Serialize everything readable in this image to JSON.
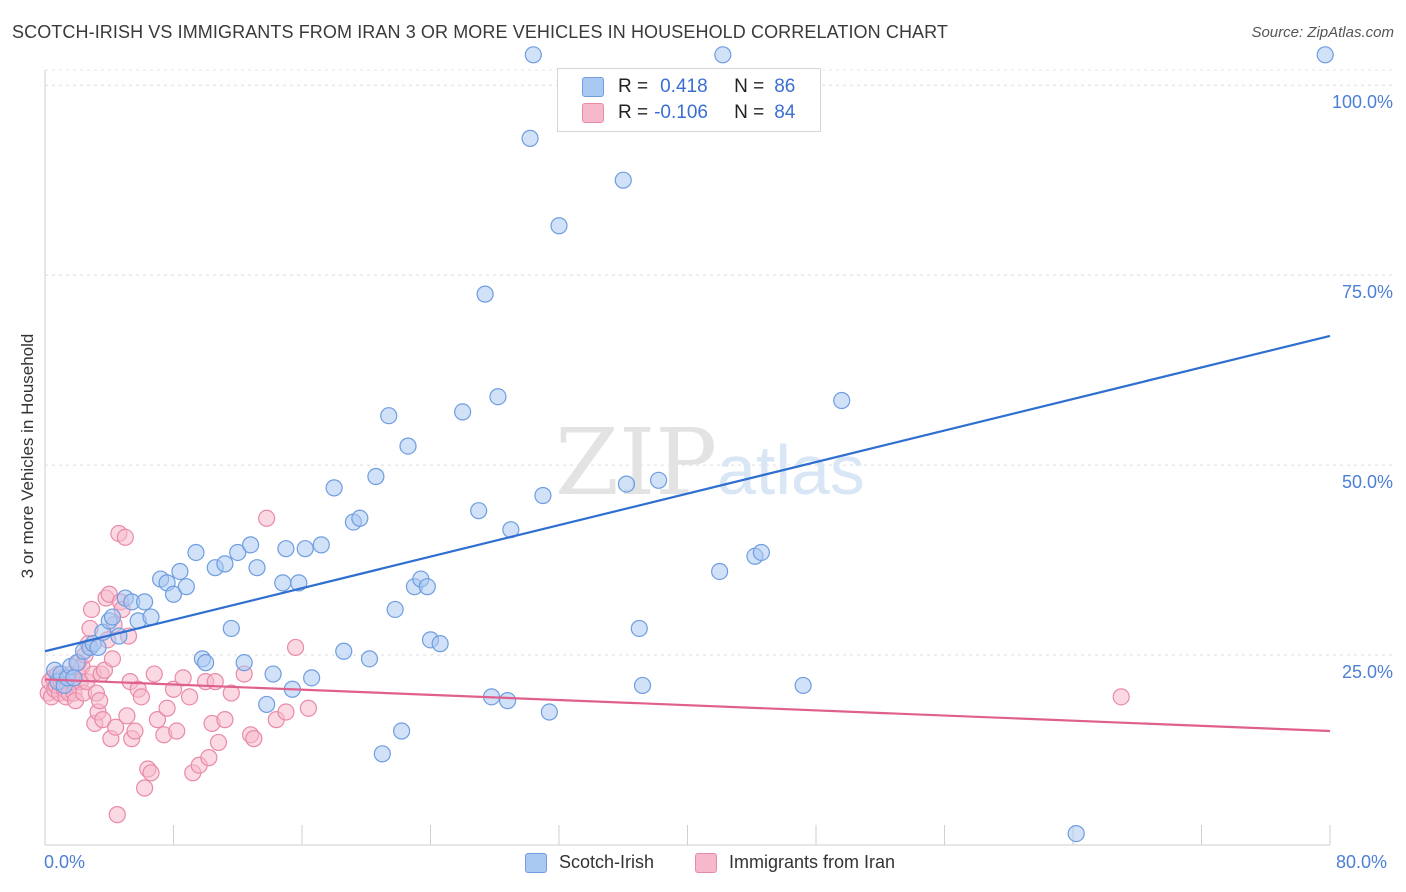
{
  "title": "SCOTCH-IRISH VS IMMIGRANTS FROM IRAN 3 OR MORE VEHICLES IN HOUSEHOLD CORRELATION CHART",
  "source": "Source: ZipAtlas.com",
  "watermark": {
    "zip": "ZIP",
    "atlas": "atlas"
  },
  "legend": {
    "rows": [
      {
        "r_label": "R =",
        "r_value": "0.418",
        "n_label": "N =",
        "n_value": "86"
      },
      {
        "r_label": "R =",
        "r_value": "-0.106",
        "n_label": "N =",
        "n_value": "84"
      }
    ]
  },
  "colors": {
    "series1_fill": "#a9c8f2",
    "series1_stroke": "#6f9de0",
    "series1_line": "#2f6fd0",
    "series2_fill": "#f6b9cc",
    "series2_stroke": "#e98aa8",
    "series2_line": "#e0608d",
    "axis_text": "#4c7fd6"
  },
  "chart_data": {
    "type": "scatter",
    "title": "SCOTCH-IRISH VS IMMIGRANTS FROM IRAN 3 OR MORE VEHICLES IN HOUSEHOLD CORRELATION CHART",
    "xlabel": "",
    "ylabel": "3 or more Vehicles in Household",
    "xlim": [
      0,
      80
    ],
    "ylim": [
      0,
      102
    ],
    "x_tick_labels": [
      "0.0%",
      "80.0%"
    ],
    "y_ticks": [
      25,
      50,
      75,
      100
    ],
    "y_tick_labels": [
      "25.0%",
      "50.0%",
      "75.0%",
      "100.0%"
    ],
    "grid": "horizontal dashed",
    "legend_position": "bottom",
    "series": [
      {
        "name": "Scotch-Irish",
        "R": 0.418,
        "N": 86,
        "trend": {
          "x0": 0,
          "y0": 25.5,
          "x1": 80,
          "y1": 67.0
        },
        "points": [
          [
            0.6,
            23.0
          ],
          [
            0.8,
            21.5
          ],
          [
            1.0,
            22.5
          ],
          [
            1.2,
            21.0
          ],
          [
            1.4,
            22.0
          ],
          [
            1.6,
            23.5
          ],
          [
            1.8,
            22.0
          ],
          [
            2.0,
            24.0
          ],
          [
            2.4,
            25.5
          ],
          [
            2.8,
            26.0
          ],
          [
            3.0,
            26.5
          ],
          [
            3.3,
            26.0
          ],
          [
            3.6,
            28.0
          ],
          [
            4.0,
            29.5
          ],
          [
            4.2,
            30.0
          ],
          [
            4.6,
            27.5
          ],
          [
            5.0,
            32.5
          ],
          [
            5.4,
            32.0
          ],
          [
            5.8,
            29.5
          ],
          [
            6.2,
            32.0
          ],
          [
            6.6,
            30.0
          ],
          [
            7.2,
            35.0
          ],
          [
            7.6,
            34.5
          ],
          [
            8.0,
            33.0
          ],
          [
            8.4,
            36.0
          ],
          [
            8.8,
            34.0
          ],
          [
            9.4,
            38.5
          ],
          [
            9.8,
            24.5
          ],
          [
            10.0,
            24.0
          ],
          [
            10.6,
            36.5
          ],
          [
            11.2,
            37.0
          ],
          [
            11.6,
            28.5
          ],
          [
            12.0,
            38.5
          ],
          [
            12.4,
            24.0
          ],
          [
            12.8,
            39.5
          ],
          [
            13.2,
            36.5
          ],
          [
            13.8,
            18.5
          ],
          [
            14.2,
            22.5
          ],
          [
            14.8,
            34.5
          ],
          [
            15.0,
            39.0
          ],
          [
            15.4,
            20.5
          ],
          [
            15.8,
            34.5
          ],
          [
            16.2,
            39.0
          ],
          [
            16.6,
            22.0
          ],
          [
            17.2,
            39.5
          ],
          [
            18.0,
            47.0
          ],
          [
            18.6,
            25.5
          ],
          [
            19.2,
            42.5
          ],
          [
            19.6,
            43.0
          ],
          [
            20.2,
            24.5
          ],
          [
            20.6,
            48.5
          ],
          [
            21.0,
            12.0
          ],
          [
            21.4,
            56.5
          ],
          [
            21.8,
            31.0
          ],
          [
            22.2,
            15.0
          ],
          [
            22.6,
            52.5
          ],
          [
            23.0,
            34.0
          ],
          [
            23.4,
            35.0
          ],
          [
            23.8,
            34.0
          ],
          [
            24.0,
            27.0
          ],
          [
            24.6,
            26.5
          ],
          [
            26.0,
            57.0
          ],
          [
            27.0,
            44.0
          ],
          [
            27.4,
            72.5
          ],
          [
            27.8,
            19.5
          ],
          [
            28.2,
            59.0
          ],
          [
            28.8,
            19.0
          ],
          [
            29.0,
            41.5
          ],
          [
            30.2,
            93.0
          ],
          [
            30.4,
            104.0
          ],
          [
            31.0,
            46.0
          ],
          [
            31.4,
            17.5
          ],
          [
            32.0,
            81.5
          ],
          [
            36.0,
            87.5
          ],
          [
            36.2,
            47.5
          ],
          [
            37.0,
            28.5
          ],
          [
            37.2,
            21.0
          ],
          [
            38.2,
            48.0
          ],
          [
            42.0,
            36.0
          ],
          [
            42.2,
            104.0
          ],
          [
            44.2,
            38.0
          ],
          [
            44.6,
            38.5
          ],
          [
            47.2,
            21.0
          ],
          [
            49.6,
            58.5
          ],
          [
            64.2,
            1.5
          ],
          [
            79.7,
            104.0
          ]
        ]
      },
      {
        "name": "Immigrants from Iran",
        "R": -0.106,
        "N": 84,
        "trend": {
          "x0": 0,
          "y0": 21.8,
          "x1": 80,
          "y1": 15.0
        },
        "points": [
          [
            0.2,
            20.0
          ],
          [
            0.3,
            21.5
          ],
          [
            0.4,
            19.5
          ],
          [
            0.5,
            22.0
          ],
          [
            0.6,
            20.5
          ],
          [
            0.7,
            21.0
          ],
          [
            0.8,
            22.5
          ],
          [
            0.9,
            20.0
          ],
          [
            1.0,
            21.5
          ],
          [
            1.1,
            22.0
          ],
          [
            1.2,
            20.5
          ],
          [
            1.3,
            19.5
          ],
          [
            1.4,
            21.0
          ],
          [
            1.5,
            20.0
          ],
          [
            1.6,
            22.5
          ],
          [
            1.7,
            21.5
          ],
          [
            1.8,
            20.0
          ],
          [
            1.9,
            19.0
          ],
          [
            2.0,
            22.5
          ],
          [
            2.1,
            24.0
          ],
          [
            2.2,
            21.5
          ],
          [
            2.3,
            23.5
          ],
          [
            2.4,
            20.0
          ],
          [
            2.5,
            25.0
          ],
          [
            2.6,
            21.5
          ],
          [
            2.7,
            26.5
          ],
          [
            2.8,
            28.5
          ],
          [
            2.9,
            31.0
          ],
          [
            3.0,
            22.5
          ],
          [
            3.1,
            16.0
          ],
          [
            3.2,
            20.0
          ],
          [
            3.3,
            17.5
          ],
          [
            3.4,
            19.0
          ],
          [
            3.5,
            22.5
          ],
          [
            3.6,
            16.5
          ],
          [
            3.7,
            23.0
          ],
          [
            3.8,
            32.5
          ],
          [
            3.9,
            27.0
          ],
          [
            4.0,
            33.0
          ],
          [
            4.1,
            14.0
          ],
          [
            4.2,
            24.5
          ],
          [
            4.3,
            29.0
          ],
          [
            4.4,
            15.5
          ],
          [
            4.5,
            4.0
          ],
          [
            4.6,
            41.0
          ],
          [
            4.7,
            32.0
          ],
          [
            4.8,
            31.0
          ],
          [
            5.0,
            40.5
          ],
          [
            5.1,
            17.0
          ],
          [
            5.2,
            27.5
          ],
          [
            5.3,
            21.5
          ],
          [
            5.4,
            14.0
          ],
          [
            5.6,
            15.0
          ],
          [
            5.8,
            20.5
          ],
          [
            6.0,
            19.5
          ],
          [
            6.2,
            7.5
          ],
          [
            6.4,
            10.0
          ],
          [
            6.6,
            9.5
          ],
          [
            6.8,
            22.5
          ],
          [
            7.0,
            16.5
          ],
          [
            7.4,
            14.5
          ],
          [
            7.6,
            18.0
          ],
          [
            8.0,
            20.5
          ],
          [
            8.2,
            15.0
          ],
          [
            8.6,
            22.0
          ],
          [
            9.0,
            19.5
          ],
          [
            9.2,
            9.5
          ],
          [
            9.6,
            10.5
          ],
          [
            10.0,
            21.5
          ],
          [
            10.2,
            11.5
          ],
          [
            10.4,
            16.0
          ],
          [
            10.6,
            21.5
          ],
          [
            10.8,
            13.5
          ],
          [
            11.2,
            16.5
          ],
          [
            11.6,
            20.0
          ],
          [
            12.4,
            22.5
          ],
          [
            12.8,
            14.5
          ],
          [
            13.0,
            14.0
          ],
          [
            13.8,
            43.0
          ],
          [
            14.4,
            16.5
          ],
          [
            15.0,
            17.5
          ],
          [
            15.6,
            26.0
          ],
          [
            16.4,
            18.0
          ],
          [
            67.0,
            19.5
          ]
        ]
      }
    ]
  },
  "bottom_legend": [
    {
      "label": "Scotch-Irish"
    },
    {
      "label": "Immigrants from Iran"
    }
  ]
}
